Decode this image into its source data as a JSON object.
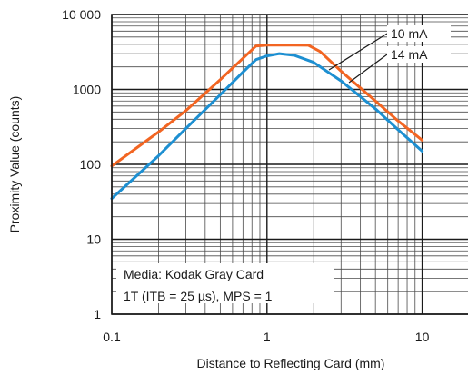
{
  "chart_data": {
    "type": "line",
    "title": "",
    "xlabel": "Distance to Reflecting Card (mm)",
    "ylabel": "Proximity Value (counts)",
    "x_scale": "log",
    "y_scale": "log",
    "xlim": [
      0.1,
      20
    ],
    "ylim": [
      1,
      10000
    ],
    "x_ticks": [
      {
        "value": 0.1,
        "label": "0.1"
      },
      {
        "value": 1,
        "label": "1"
      },
      {
        "value": 10,
        "label": "10"
      }
    ],
    "y_ticks": [
      {
        "value": 1,
        "label": "1"
      },
      {
        "value": 10,
        "label": "10"
      },
      {
        "value": 100,
        "label": "100"
      },
      {
        "value": 1000,
        "label": "1000"
      },
      {
        "value": 10000,
        "label": "10 000"
      }
    ],
    "grid": true,
    "series": [
      {
        "name": "10 mA",
        "color": "#f26522",
        "x": [
          0.1,
          0.2,
          0.3,
          0.5,
          0.7,
          0.85,
          1.0,
          1.2,
          1.5,
          1.85,
          2.2,
          3.0,
          5.0,
          7.0,
          10.0
        ],
        "y": [
          95,
          270,
          520,
          1350,
          2600,
          3800,
          3900,
          3900,
          3900,
          3880,
          3200,
          1750,
          700,
          380,
          210
        ]
      },
      {
        "name": "14 mA",
        "color": "#1d8fd1",
        "x": [
          0.1,
          0.2,
          0.3,
          0.5,
          0.7,
          0.85,
          1.0,
          1.2,
          1.5,
          2.0,
          3.0,
          5.0,
          7.0,
          10.0
        ],
        "y": [
          35,
          130,
          300,
          850,
          1700,
          2500,
          2800,
          3000,
          2850,
          2300,
          1300,
          550,
          290,
          150
        ]
      }
    ],
    "annotations": [
      "Media: Kodak Gray Card",
      "1T (ITB = 25 µs), MPS = 1"
    ]
  }
}
